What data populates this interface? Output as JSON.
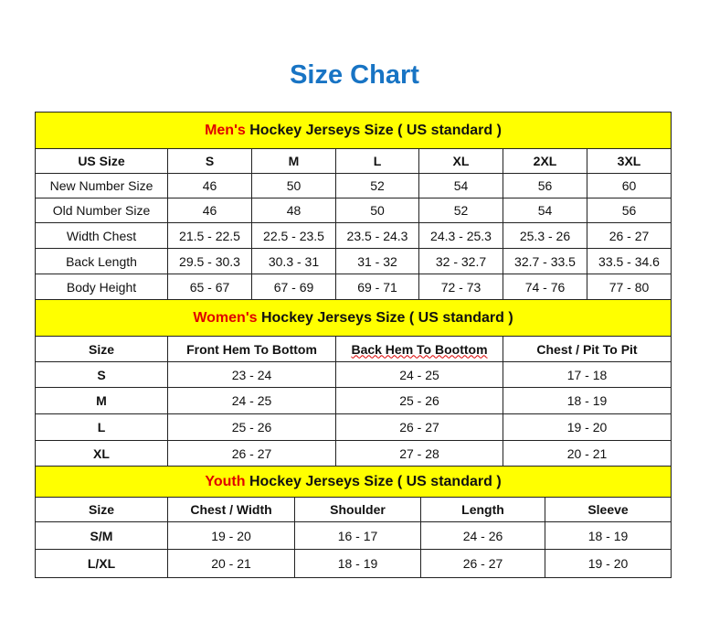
{
  "title": "Size Chart",
  "colors": {
    "title": "#1874c4",
    "header_bg": "#ffff00",
    "accent": "#e00000"
  },
  "men": {
    "header_accent": "Men's",
    "header_rest": " Hockey Jerseys Size ( US standard )",
    "columns": [
      "US Size",
      "S",
      "M",
      "L",
      "XL",
      "2XL",
      "3XL"
    ],
    "rows": [
      [
        "New Number Size",
        "46",
        "50",
        "52",
        "54",
        "56",
        "60"
      ],
      [
        "Old Number Size",
        "46",
        "48",
        "50",
        "52",
        "54",
        "56"
      ],
      [
        "Width Chest",
        "21.5 - 22.5",
        "22.5 - 23.5",
        "23.5 - 24.3",
        "24.3 - 25.3",
        "25.3 - 26",
        "26 - 27"
      ],
      [
        "Back Length",
        "29.5 - 30.3",
        "30.3 - 31",
        "31 - 32",
        "32 - 32.7",
        "32.7 - 33.5",
        "33.5 - 34.6"
      ],
      [
        "Body Height",
        "65 - 67",
        "67 - 69",
        "69 - 71",
        "72 - 73",
        "74 - 76",
        "77 - 80"
      ]
    ]
  },
  "women": {
    "header_accent": "Women's",
    "header_rest": " Hockey Jerseys Size ( US standard )",
    "columns": [
      "Size",
      "Front Hem To Bottom",
      "Back Hem To Boottom",
      "Chest / Pit To Pit"
    ],
    "rows": [
      [
        "S",
        "23 - 24",
        "24 - 25",
        "17 - 18"
      ],
      [
        "M",
        "24 - 25",
        "25 - 26",
        "18 - 19"
      ],
      [
        "L",
        "25 - 26",
        "26 - 27",
        "19 - 20"
      ],
      [
        "XL",
        "26 - 27",
        "27 - 28",
        "20 - 21"
      ]
    ]
  },
  "youth": {
    "header_accent": "Youth",
    "header_rest": " Hockey Jerseys Size ( US standard )",
    "columns": [
      "Size",
      "Chest / Width",
      "Shoulder",
      "Length",
      "Sleeve"
    ],
    "rows": [
      [
        "S/M",
        "19 - 20",
        "16 - 17",
        "24 - 26",
        "18 - 19"
      ],
      [
        "L/XL",
        "20 - 21",
        "18 - 19",
        "26 - 27",
        "19 - 20"
      ]
    ]
  }
}
